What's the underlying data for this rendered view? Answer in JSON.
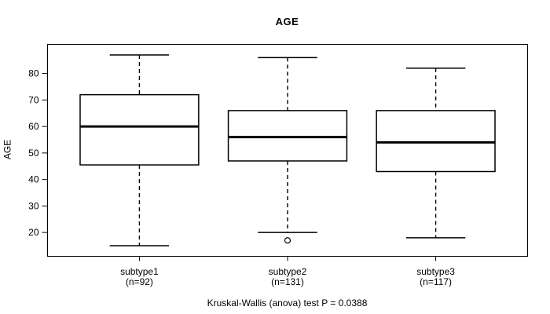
{
  "chart_data": {
    "type": "boxplot",
    "title": "AGE",
    "xlabel": "",
    "ylabel": "AGE",
    "ylim": [
      11,
      91
    ],
    "yticks": [
      20,
      30,
      40,
      50,
      60,
      70,
      80
    ],
    "grid": false,
    "legend": false,
    "caption": "Kruskal-Wallis (anova) test P = 0.0388",
    "groups": [
      {
        "label": "subtype1",
        "n_label": "(n=92)",
        "n": 92,
        "whisker_low": 15,
        "q1": 45.5,
        "median": 60,
        "q3": 72,
        "whisker_high": 87,
        "outliers": []
      },
      {
        "label": "subtype2",
        "n_label": "(n=131)",
        "n": 131,
        "whisker_low": 20,
        "q1": 47,
        "median": 56,
        "q3": 66,
        "whisker_high": 86,
        "outliers": [
          17
        ]
      },
      {
        "label": "subtype3",
        "n_label": "(n=117)",
        "n": 117,
        "whisker_low": 18,
        "q1": 43,
        "median": 54,
        "q3": 66,
        "whisker_high": 82,
        "outliers": []
      }
    ],
    "colors": {
      "line": "#000000",
      "box_fill": "#ffffff",
      "background": "#ffffff"
    }
  }
}
